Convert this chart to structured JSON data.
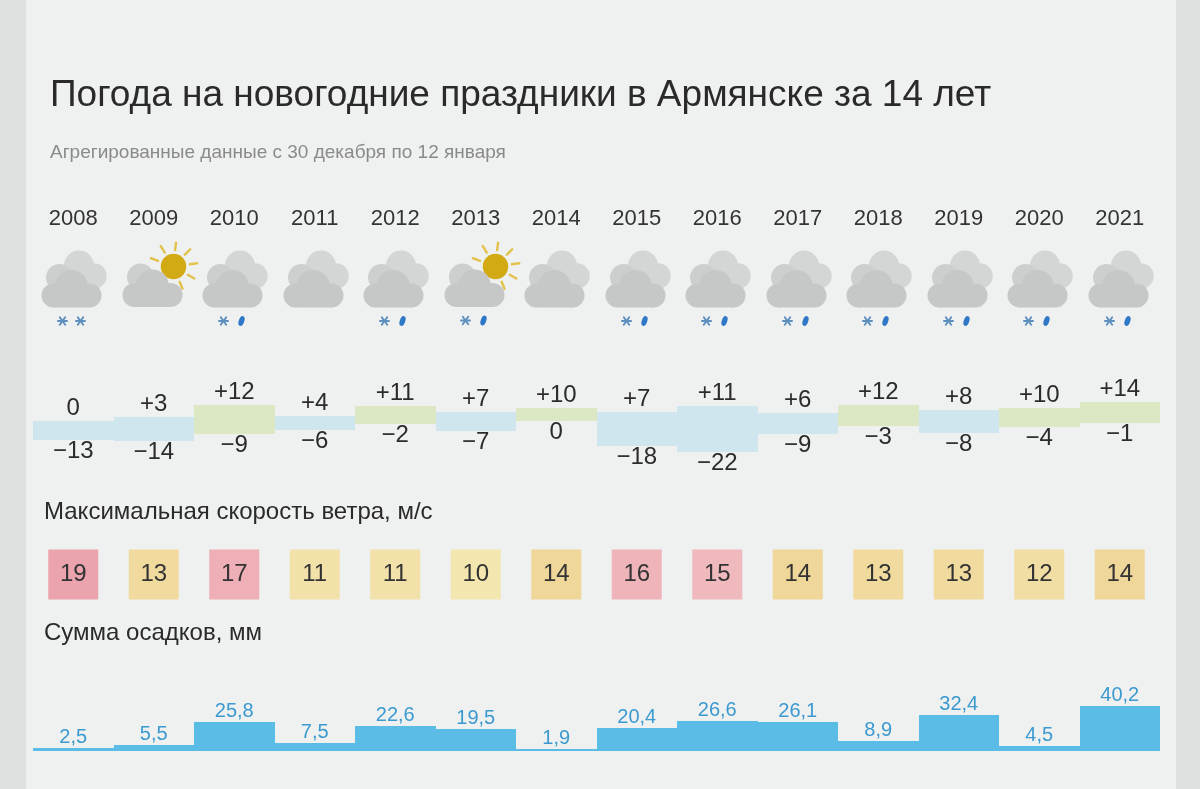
{
  "chart_data": [
    {
      "type": "bar",
      "title": "Погода на новогодние праздники в Армянске за 14 лет",
      "subtitle": "Агрегированные данные с 30 декабря по 12 января",
      "categories": [
        "2008",
        "2009",
        "2010",
        "2011",
        "2012",
        "2013",
        "2014",
        "2015",
        "2016",
        "2017",
        "2018",
        "2019",
        "2020",
        "2021"
      ],
      "stacked": true,
      "tick_labels": "x",
      "series": [
        {
          "values": [
            -13,
            -14,
            -9,
            -6,
            -2,
            -7,
            0,
            -18,
            -22,
            -9,
            -3,
            -8,
            -4,
            -1
          ],
          "colors": [
            "#d0e6ef",
            "#d0e6ef",
            "#dce8c3",
            "#d0e6ef",
            "#dce8c3",
            "#d0e6ef",
            "#dce8c3",
            "#d0e6ef",
            "#d0e6ef",
            "#d0e6ef",
            "#dce8c3",
            "#d0e6ef",
            "#dce8c3",
            "#dce8c3"
          ],
          "value_labels": [
            "−13",
            "−14",
            "−9",
            "−6",
            "−2",
            "−7",
            "0",
            "−18",
            "−22",
            "−9",
            "−3",
            "−8",
            "−4",
            "−1"
          ]
        },
        {
          "values": [
            0,
            3,
            12,
            4,
            11,
            7,
            10,
            7,
            11,
            6,
            12,
            8,
            10,
            14
          ],
          "colors": [
            "#d0e6ef",
            "#d0e6ef",
            "#dce8c3",
            "#d0e6ef",
            "#dce8c3",
            "#d0e6ef",
            "#dce8c3",
            "#d0e6ef",
            "#d0e6ef",
            "#d0e6ef",
            "#dce8c3",
            "#d0e6ef",
            "#dce8c3",
            "#dce8c3"
          ],
          "value_labels": [
            "0",
            "+3",
            "+12",
            "+4",
            "+11",
            "+7",
            "+10",
            "+7",
            "+11",
            "+6",
            "+12",
            "+8",
            "+10",
            "+14"
          ]
        }
      ]
    },
    {
      "type": "heatmap",
      "title": "Максимальная скорость ветра, м/с",
      "categories": [
        "2008",
        "2009",
        "2010",
        "2011",
        "2012",
        "2013",
        "2014",
        "2015",
        "2016",
        "2017",
        "2018",
        "2019",
        "2020",
        "2021"
      ],
      "y_categories": [
        null
      ],
      "cells": [
        [
          19,
          13,
          17,
          11,
          11,
          10,
          14,
          16,
          15,
          14,
          13,
          13,
          12,
          14
        ]
      ],
      "data_labels": true,
      "tick_labels": false
    },
    {
      "type": "bar",
      "title": "Сумма осадков, мм",
      "categories": [
        "2008",
        "2009",
        "2010",
        "2011",
        "2012",
        "2013",
        "2014",
        "2015",
        "2016",
        "2017",
        "2018",
        "2019",
        "2020",
        "2021"
      ],
      "values": [
        2.5,
        5.5,
        25.8,
        7.5,
        22.6,
        19.5,
        1.9,
        20.4,
        26.6,
        26.1,
        8.9,
        32.4,
        4.5,
        40.2
      ],
      "value_labels": [
        "2,5",
        "5,5",
        "25,8",
        "7,5",
        "22,6",
        "19,5",
        "1,9",
        "20,4",
        "26,6",
        "26,1",
        "8,9",
        "32,4",
        "4,5",
        "40,2"
      ],
      "color": "#5bbde6",
      "tick_labels": false
    }
  ]
}
